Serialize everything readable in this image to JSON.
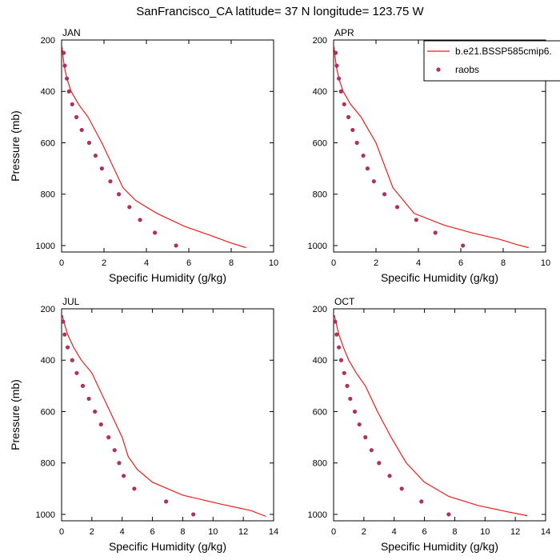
{
  "title": "SanFrancisco_CA  latitude= 37 N longitude= 123.75 W",
  "colors": {
    "model": "#ee1c1c",
    "obs": "#b03060",
    "axis": "#000000"
  },
  "legend": {
    "placement": "top-right",
    "model_label": "b.e21.BSSP585cmip6.",
    "obs_label": "raobs"
  },
  "chart_data": [
    {
      "type": "line",
      "panel": "JAN",
      "xlabel": "Specific Humidity (g/kg)",
      "ylabel": "Pressure (mb)",
      "xlim": [
        0,
        10
      ],
      "ylim": [
        200,
        1025
      ],
      "y_reversed": true,
      "xticks": [
        0,
        2,
        4,
        6,
        8,
        10
      ],
      "yticks": [
        200,
        400,
        600,
        800,
        1000
      ],
      "series": [
        {
          "name": "b.e21.BSSP585cmip6.",
          "kind": "line",
          "x": [
            0.02,
            0.05,
            0.12,
            0.25,
            0.45,
            0.8,
            1.25,
            1.9,
            2.9,
            3.5,
            4.5,
            5.8,
            7.0,
            8.0,
            8.7
          ],
          "y": [
            225,
            250,
            300,
            350,
            400,
            450,
            500,
            600,
            775,
            825,
            875,
            925,
            960,
            990,
            1008
          ]
        },
        {
          "name": "raobs",
          "kind": "scatter",
          "x": [
            0.1,
            0.15,
            0.25,
            0.35,
            0.5,
            0.7,
            0.95,
            1.3,
            1.6,
            1.9,
            2.3,
            2.7,
            3.2,
            3.7,
            4.4,
            5.4
          ],
          "y": [
            250,
            300,
            350,
            400,
            450,
            500,
            550,
            600,
            650,
            700,
            750,
            800,
            850,
            900,
            950,
            1000
          ]
        }
      ]
    },
    {
      "type": "line",
      "panel": "APR",
      "xlabel": "Specific Humidity (g/kg)",
      "ylabel": "",
      "xlim": [
        0,
        10
      ],
      "ylim": [
        200,
        1025
      ],
      "y_reversed": true,
      "xticks": [
        0,
        2,
        4,
        6,
        8,
        10
      ],
      "yticks": [
        200,
        400,
        600,
        800,
        1000
      ],
      "series": [
        {
          "name": "b.e21.BSSP585cmip6.",
          "kind": "line",
          "x": [
            0.02,
            0.05,
            0.12,
            0.25,
            0.45,
            0.8,
            1.3,
            2.0,
            2.8,
            3.8,
            5.2,
            6.5,
            7.8,
            8.6,
            9.2
          ],
          "y": [
            225,
            250,
            300,
            350,
            400,
            450,
            500,
            600,
            775,
            875,
            920,
            950,
            975,
            995,
            1008
          ]
        },
        {
          "name": "raobs",
          "kind": "scatter",
          "x": [
            0.1,
            0.15,
            0.25,
            0.35,
            0.5,
            0.7,
            0.9,
            1.1,
            1.4,
            1.6,
            1.9,
            2.4,
            3.0,
            3.9,
            4.8,
            6.1
          ],
          "y": [
            250,
            300,
            350,
            400,
            450,
            500,
            550,
            600,
            650,
            700,
            750,
            800,
            850,
            900,
            950,
            1000
          ]
        }
      ]
    },
    {
      "type": "line",
      "panel": "JUL",
      "xlabel": "Specific Humidity (g/kg)",
      "ylabel": "Pressure (mb)",
      "xlim": [
        0,
        14
      ],
      "ylim": [
        200,
        1025
      ],
      "y_reversed": true,
      "xticks": [
        0,
        2,
        4,
        6,
        8,
        10,
        12,
        14
      ],
      "yticks": [
        200,
        400,
        600,
        800,
        1000
      ],
      "series": [
        {
          "name": "b.e21.BSSP585cmip6.",
          "kind": "line",
          "x": [
            0.05,
            0.15,
            0.4,
            0.8,
            1.3,
            2.0,
            3.2,
            4.0,
            4.4,
            5.0,
            6.0,
            8.0,
            10.5,
            12.5,
            13.5
          ],
          "y": [
            225,
            250,
            300,
            350,
            400,
            450,
            600,
            700,
            775,
            825,
            875,
            925,
            960,
            985,
            1008
          ]
        },
        {
          "name": "raobs",
          "kind": "scatter",
          "x": [
            0.1,
            0.2,
            0.4,
            0.7,
            1.0,
            1.4,
            1.8,
            2.2,
            2.6,
            3.1,
            3.5,
            3.8,
            4.1,
            4.8,
            6.9,
            8.7
          ],
          "y": [
            250,
            300,
            350,
            400,
            450,
            500,
            550,
            600,
            650,
            700,
            750,
            800,
            850,
            900,
            950,
            1000
          ]
        }
      ]
    },
    {
      "type": "line",
      "panel": "OCT",
      "xlabel": "Specific Humidity (g/kg)",
      "ylabel": "",
      "xlim": [
        0,
        14
      ],
      "ylim": [
        200,
        1025
      ],
      "y_reversed": true,
      "xticks": [
        0,
        2,
        4,
        6,
        8,
        10,
        12,
        14
      ],
      "yticks": [
        200,
        400,
        600,
        800,
        1000
      ],
      "series": [
        {
          "name": "b.e21.BSSP585cmip6.",
          "kind": "line",
          "x": [
            0.05,
            0.15,
            0.35,
            0.65,
            1.0,
            1.5,
            2.1,
            2.9,
            3.8,
            4.8,
            6.0,
            7.6,
            9.5,
            11.5,
            12.8
          ],
          "y": [
            225,
            250,
            300,
            350,
            400,
            450,
            500,
            600,
            700,
            800,
            875,
            930,
            965,
            990,
            1005
          ]
        },
        {
          "name": "raobs",
          "kind": "scatter",
          "x": [
            0.1,
            0.2,
            0.35,
            0.5,
            0.7,
            0.9,
            1.1,
            1.4,
            1.7,
            2.1,
            2.5,
            3.0,
            3.7,
            4.5,
            5.8,
            7.6
          ],
          "y": [
            250,
            300,
            350,
            400,
            450,
            500,
            550,
            600,
            650,
            700,
            750,
            800,
            850,
            900,
            950,
            1000
          ]
        }
      ]
    }
  ]
}
